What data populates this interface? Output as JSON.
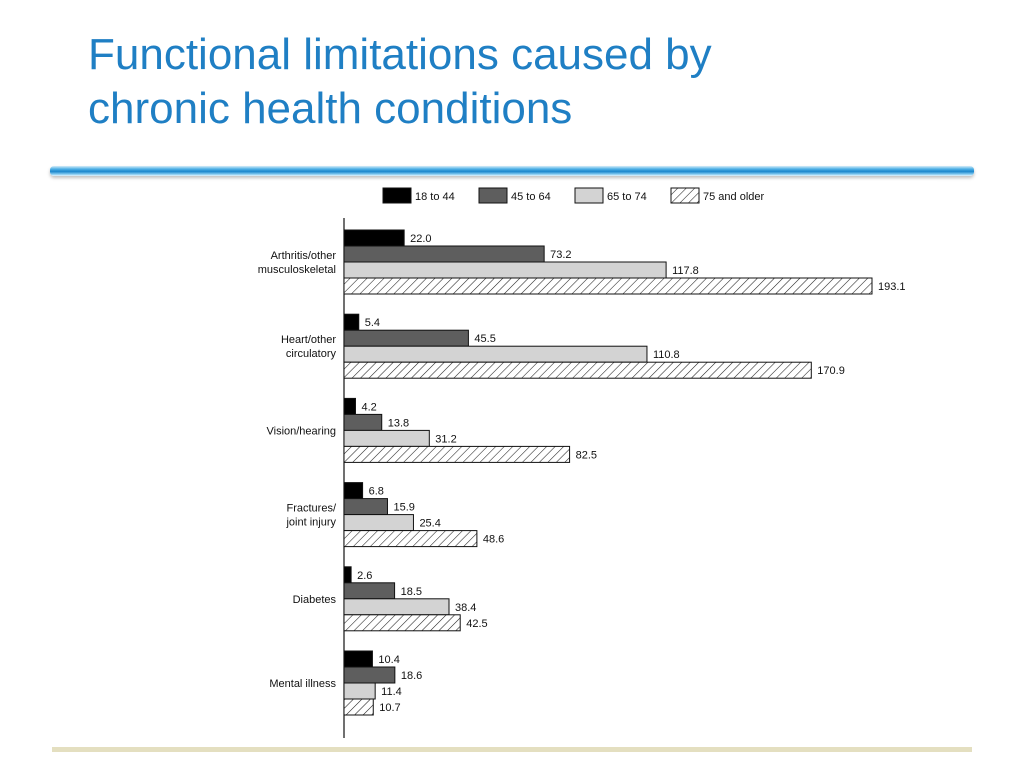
{
  "title_lines": [
    "Functional limitations caused by",
    "chronic health conditions"
  ],
  "colors": {
    "title": "#1f7fc4",
    "divider": "#1b86cc",
    "bottom_rule": "#e4dfc0",
    "series": [
      "#000000",
      "#5e5e5e",
      "#d3d3d3",
      "hatch"
    ]
  },
  "chart_data": {
    "type": "bar",
    "orientation": "horizontal",
    "categories": [
      [
        "Arthritis/other",
        "musculoskeletal"
      ],
      [
        "Heart/other",
        "circulatory"
      ],
      [
        "Vision/hearing"
      ],
      [
        "Fractures/",
        "joint injury"
      ],
      [
        "Diabetes"
      ],
      [
        "Mental illness"
      ]
    ],
    "series": [
      {
        "name": "18 to 44",
        "values": [
          22.0,
          5.4,
          4.2,
          6.8,
          2.6,
          10.4
        ]
      },
      {
        "name": "45 to 64",
        "values": [
          73.2,
          45.5,
          13.8,
          15.9,
          18.5,
          18.6
        ]
      },
      {
        "name": "65 to 74",
        "values": [
          117.8,
          110.8,
          31.2,
          25.4,
          38.4,
          11.4
        ]
      },
      {
        "name": "75 and older",
        "values": [
          193.1,
          170.9,
          82.5,
          48.6,
          42.5,
          10.7
        ]
      }
    ],
    "value_labels": [
      [
        "22.0",
        "5.4",
        "4.2",
        "6.8",
        "2.6",
        "10.4"
      ],
      [
        "73.2",
        "45.5",
        "13.8",
        "15.9",
        "18.5",
        "18.6"
      ],
      [
        "117.8",
        "110.8",
        "31.2",
        "25.4",
        "38.4",
        "11.4"
      ],
      [
        "193.1",
        "170.9",
        "82.5",
        "48.6",
        "42.5",
        "10.7"
      ]
    ],
    "xlim": [
      0,
      193.1
    ],
    "legend_position": "top",
    "grid": false,
    "data_labels": true
  }
}
